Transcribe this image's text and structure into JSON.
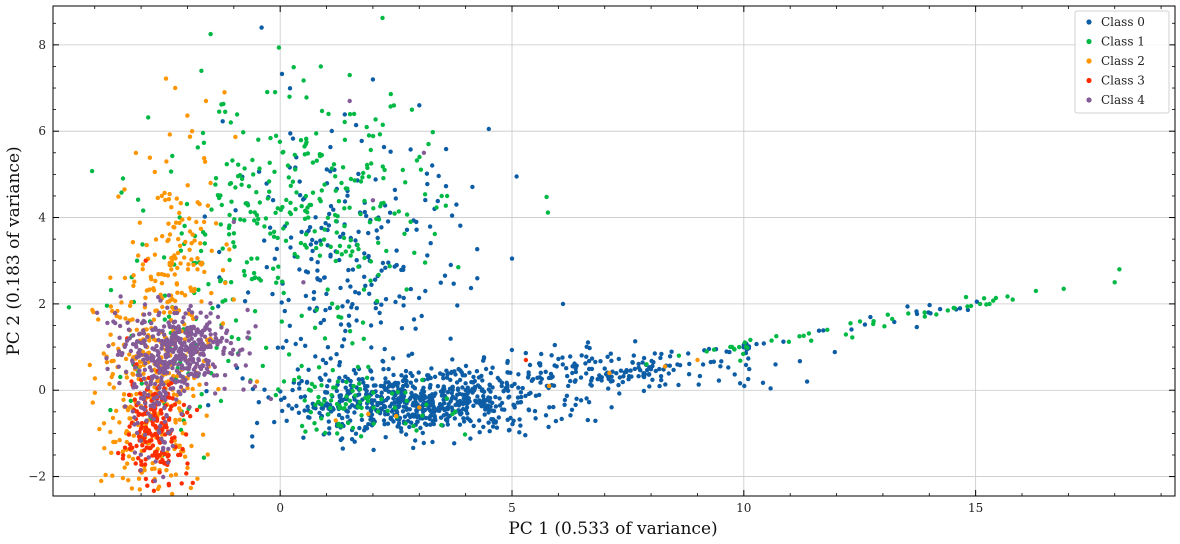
{
  "chart_data": {
    "type": "scatter",
    "xlabel": "PC 1 (0.533 of variance)",
    "ylabel": "PC 2 (0.183 of variance)",
    "xlim": [
      -4.9,
      19.3
    ],
    "ylim": [
      -2.45,
      8.9
    ],
    "x_ticks": [
      0,
      5,
      10,
      15
    ],
    "y_ticks": [
      -2,
      0,
      2,
      4,
      6,
      8
    ],
    "grid": true,
    "legend_position": "top-right",
    "series": [
      {
        "name": "Class 0",
        "color": "#0C5DA5",
        "points": [
          [
            -0.4,
            8.4
          ],
          [
            4.5,
            6.05
          ],
          [
            5.1,
            4.95
          ],
          [
            5.0,
            3.05
          ],
          [
            6.1,
            2.0
          ],
          [
            0.9,
            -0.6
          ],
          [
            1.5,
            -0.4
          ],
          [
            2.1,
            -0.3
          ],
          [
            2.8,
            -0.2
          ],
          [
            3.5,
            -0.1
          ],
          [
            4.2,
            0.05
          ],
          [
            5.0,
            0.1
          ],
          [
            5.6,
            0.3
          ],
          [
            6.3,
            0.4
          ],
          [
            7.0,
            0.5
          ],
          [
            7.6,
            0.65
          ],
          [
            8.2,
            0.75
          ],
          [
            8.8,
            0.85
          ],
          [
            9.4,
            0.95
          ],
          [
            10.0,
            1.05
          ],
          [
            3.0,
            6.6
          ],
          [
            3.8,
            4.3
          ],
          [
            2.0,
            7.2
          ],
          [
            -0.6,
            -1.3
          ],
          [
            0.5,
            -1.1
          ]
        ],
        "clusters": [
          {
            "cx": 3.0,
            "cy": -0.3,
            "sx": 1.4,
            "sy": 0.35,
            "n": 650
          },
          {
            "cx": 1.5,
            "cy": 2.8,
            "sx": 1.3,
            "sy": 1.6,
            "n": 260
          },
          {
            "cx": 7.0,
            "cy": 0.45,
            "sx": 2.0,
            "sy": 0.25,
            "n": 180
          }
        ],
        "tail": {
          "from": [
            6.0,
            0.2
          ],
          "to": [
            15.0,
            2.0
          ],
          "n": 40,
          "jitter": 0.1
        }
      },
      {
        "name": "Class 1",
        "color": "#00B945",
        "points": [
          [
            -1.5,
            8.25
          ],
          [
            -1.7,
            7.4
          ],
          [
            1.5,
            7.3
          ],
          [
            18.1,
            2.8
          ],
          [
            18.0,
            2.5
          ],
          [
            16.9,
            2.35
          ],
          [
            16.3,
            2.3
          ],
          [
            15.8,
            2.1
          ],
          [
            15.3,
            2.0
          ],
          [
            14.9,
            1.95
          ],
          [
            14.4,
            1.85
          ],
          [
            13.9,
            1.8
          ],
          [
            13.2,
            1.65
          ],
          [
            12.8,
            1.6
          ],
          [
            12.3,
            1.55
          ],
          [
            11.8,
            1.4
          ],
          [
            11.2,
            1.25
          ],
          [
            10.6,
            1.15
          ],
          [
            9.9,
            1.0
          ],
          [
            9.2,
            0.9
          ],
          [
            8.6,
            0.8
          ],
          [
            7.9,
            0.6
          ],
          [
            3.6,
            4.5
          ],
          [
            3.2,
            5.7
          ],
          [
            0.2,
            6.8
          ]
        ],
        "clusters": [
          {
            "cx": 0.4,
            "cy": 4.0,
            "sx": 1.5,
            "sy": 1.4,
            "n": 300
          },
          {
            "cx": 1.6,
            "cy": -0.3,
            "sx": 1.0,
            "sy": 0.35,
            "n": 90
          },
          {
            "cx": -2.1,
            "cy": 1.5,
            "sx": 0.8,
            "sy": 1.6,
            "n": 80
          }
        ],
        "tail": {
          "from": [
            8.5,
            0.7
          ],
          "to": [
            16.5,
            2.3
          ],
          "n": 35,
          "jitter": 0.08
        }
      },
      {
        "name": "Class 2",
        "color": "#FF9500",
        "points": [
          [
            -1.6,
            6.7
          ],
          [
            -1.9,
            6.0
          ],
          [
            -3.6,
            -1.2
          ],
          [
            -3.3,
            -1.7
          ],
          [
            -2.6,
            -1.85
          ],
          [
            -2.0,
            -1.8
          ],
          [
            -2.2,
            3.5
          ],
          [
            -1.5,
            4.8
          ],
          [
            1.9,
            -0.55
          ],
          [
            3.0,
            -0.4
          ],
          [
            5.8,
            0.1
          ],
          [
            7.1,
            0.4
          ],
          [
            8.3,
            0.55
          ],
          [
            9.0,
            0.7
          ],
          [
            -1.2,
            6.9
          ],
          [
            -3.9,
            -0.9
          ],
          [
            -1.0,
            2.1
          ],
          [
            -0.5,
            0.2
          ],
          [
            1.2,
            -0.7
          ],
          [
            2.5,
            -0.6
          ]
        ],
        "clusters": [
          {
            "cx": -2.8,
            "cy": 0.2,
            "sx": 0.55,
            "sy": 1.4,
            "n": 300
          },
          {
            "cx": -2.1,
            "cy": 3.2,
            "sx": 0.5,
            "sy": 1.4,
            "n": 130
          }
        ]
      },
      {
        "name": "Class 3",
        "color": "#FF2C00",
        "points": [
          [
            -2.6,
            -1.9
          ],
          [
            -2.9,
            -1.6
          ],
          [
            -3.1,
            0.6
          ],
          [
            -2.2,
            -1.5
          ],
          [
            -2.8,
            -1.0
          ],
          [
            5.3,
            0.7
          ],
          [
            -2.3,
            0.2
          ],
          [
            -3.3,
            1.2
          ],
          [
            -2.9,
            3.0
          ],
          [
            -2.0,
            -1.7
          ]
        ],
        "clusters": [
          {
            "cx": -2.7,
            "cy": -0.9,
            "sx": 0.3,
            "sy": 0.6,
            "n": 170
          }
        ]
      },
      {
        "name": "Class 4",
        "color": "#845B97",
        "points": [
          [
            -1.5,
            1.0
          ],
          [
            -2.0,
            1.4
          ],
          [
            -3.0,
            -0.4
          ],
          [
            -2.6,
            0.5
          ],
          [
            -1.8,
            0.9
          ],
          [
            -2.3,
            1.1
          ],
          [
            -1.6,
            0.7
          ],
          [
            -2.8,
            -0.6
          ],
          [
            1.5,
            6.7
          ],
          [
            3.1,
            5.5
          ],
          [
            -1.0,
            3.9
          ],
          [
            -2.4,
            2.2
          ],
          [
            0.5,
            2.5
          ],
          [
            -0.2,
            -0.2
          ],
          [
            2.0,
            4.4
          ],
          [
            -2.5,
            -1.2
          ],
          [
            -1.9,
            1.8
          ],
          [
            -2.1,
            0.3
          ],
          [
            -1.4,
            1.3
          ],
          [
            -2.9,
            0.8
          ]
        ],
        "clusters": [
          {
            "cx": -2.2,
            "cy": 0.9,
            "sx": 0.6,
            "sy": 0.45,
            "n": 380
          },
          {
            "cx": -2.7,
            "cy": -0.4,
            "sx": 0.3,
            "sy": 0.7,
            "n": 90
          }
        ]
      }
    ]
  }
}
